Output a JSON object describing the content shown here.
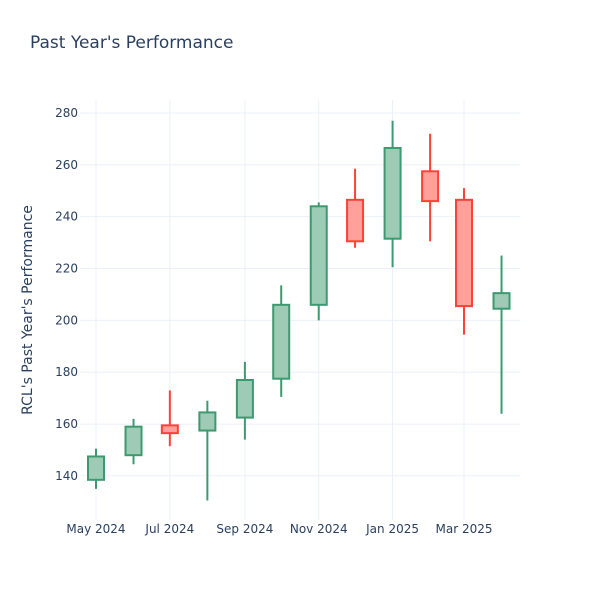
{
  "chart_data": {
    "type": "candlestick",
    "title": "Past Year's Performance",
    "xlabel": "",
    "ylabel": "RCL's Past Year's Performance",
    "ylim": [
      123,
      285
    ],
    "yticks": [
      140,
      160,
      180,
      200,
      220,
      240,
      260,
      280
    ],
    "xticks": [
      "May 2024",
      "Jul 2024",
      "Sep 2024",
      "Nov 2024",
      "Jan 2025",
      "Mar 2025"
    ],
    "grid": true,
    "legend": "none",
    "colors": {
      "increasing_line": "#3d9970",
      "increasing_fill": "#9ecbb5",
      "decreasing_line": "#ff4136",
      "decreasing_fill": "#ffa09b",
      "grid": "#ebf0f8",
      "text": "#2a3f5f"
    },
    "candles": [
      {
        "date": "2024-05",
        "open": 138.5,
        "high": 150.5,
        "low": 135.0,
        "close": 147.5
      },
      {
        "date": "2024-06",
        "open": 148.0,
        "high": 162.0,
        "low": 144.5,
        "close": 159.0
      },
      {
        "date": "2024-07",
        "open": 159.5,
        "high": 173.0,
        "low": 151.5,
        "close": 156.5
      },
      {
        "date": "2024-08",
        "open": 157.5,
        "high": 169.0,
        "low": 130.5,
        "close": 164.5
      },
      {
        "date": "2024-09",
        "open": 162.5,
        "high": 184.0,
        "low": 154.0,
        "close": 177.0
      },
      {
        "date": "2024-10",
        "open": 177.5,
        "high": 213.5,
        "low": 170.5,
        "close": 206.0
      },
      {
        "date": "2024-11",
        "open": 206.0,
        "high": 245.5,
        "low": 200.0,
        "close": 244.0
      },
      {
        "date": "2024-12",
        "open": 246.5,
        "high": 258.5,
        "low": 228.0,
        "close": 230.5
      },
      {
        "date": "2025-01",
        "open": 231.5,
        "high": 277.0,
        "low": 220.5,
        "close": 266.5
      },
      {
        "date": "2025-02",
        "open": 257.5,
        "high": 272.0,
        "low": 230.5,
        "close": 246.0
      },
      {
        "date": "2025-03",
        "open": 246.5,
        "high": 251.0,
        "low": 194.5,
        "close": 205.5
      },
      {
        "date": "2025-04",
        "open": 204.5,
        "high": 225.0,
        "low": 164.0,
        "close": 210.5
      }
    ]
  }
}
